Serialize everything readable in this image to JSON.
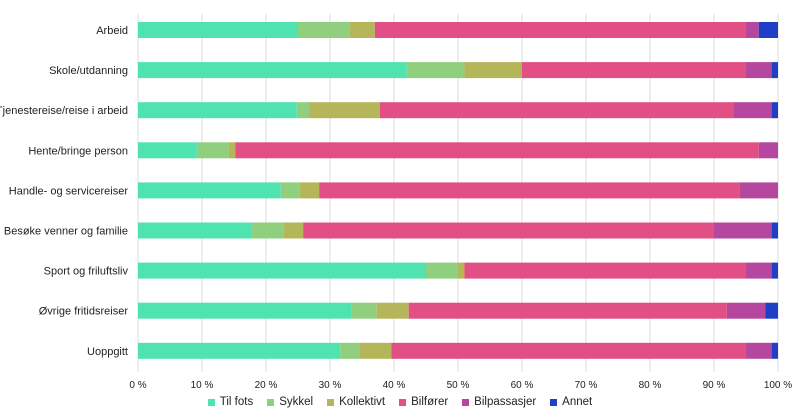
{
  "chart_data": {
    "type": "bar",
    "orientation": "horizontal",
    "stacked": true,
    "percent_stacked": true,
    "categories": [
      "Arbeid",
      "Skole/utdanning",
      "Tjenestereise/reise i arbeid",
      "Hente/bringe person",
      "Handle- og servicereiser",
      "Besøke venner og familie",
      "Sport og friluftsliv",
      "Øvrige fritidsreiser",
      "Uoppgitt"
    ],
    "series": [
      {
        "name": "Til fots",
        "color": "#4fe3b0",
        "values": [
          25,
          42,
          24.8,
          9.2,
          22.3,
          17.8,
          45,
          33.3,
          31.6
        ]
      },
      {
        "name": "Sykkel",
        "color": "#8fcf7e",
        "values": [
          8,
          9,
          2,
          5,
          3,
          5,
          5,
          4,
          3
        ]
      },
      {
        "name": "Kollektivt",
        "color": "#b5b55a",
        "values": [
          4,
          9,
          11,
          1,
          3,
          3,
          1,
          5,
          5
        ]
      },
      {
        "name": "Bilfører",
        "color": "#e24f84",
        "values": [
          58,
          35,
          55.2,
          81.8,
          65.7,
          64.2,
          44,
          49.7,
          55.4
        ]
      },
      {
        "name": "Bilpassasjer",
        "color": "#b5479f",
        "values": [
          2,
          4,
          6,
          3,
          6,
          9,
          4,
          6,
          4
        ]
      },
      {
        "name": "Annet",
        "color": "#1f3fc4",
        "values": [
          3,
          1,
          1,
          0,
          0,
          1,
          1,
          2,
          1
        ]
      }
    ],
    "xlim": [
      0,
      100
    ],
    "x_ticks": [
      "0 %",
      "10 %",
      "20 %",
      "30 %",
      "40 %",
      "50 %",
      "60 %",
      "70 %",
      "80 %",
      "90 %",
      "100 %"
    ],
    "grid": "vertical",
    "legend_position": "bottom"
  }
}
